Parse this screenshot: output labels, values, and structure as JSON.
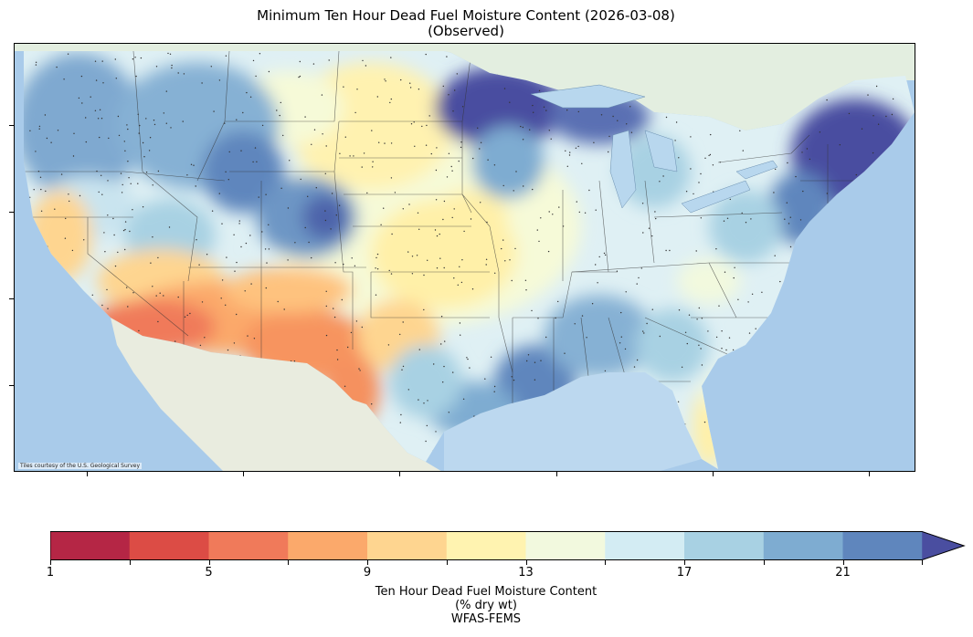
{
  "title": "Minimum Ten Hour Dead Fuel Moisture Content (2026-03-08)",
  "subtitle": "(Observed)",
  "attribution": "Tiles courtesy of the U.S. Geological Survey",
  "colorbar": {
    "ticks": [
      "1",
      "5",
      "9",
      "13",
      "17",
      "21"
    ],
    "label_line1": "Ten Hour Dead Fuel Moisture Content",
    "label_line2": "(% dry wt)",
    "label_line3": "WFAS-FEMS",
    "colors": [
      "#b52645",
      "#dc4c45",
      "#f07a5a",
      "#fba96b",
      "#fed590",
      "#fff3b0",
      "#f2f9de",
      "#d3ecf3",
      "#a8d1e3",
      "#7eacd1",
      "#5f86bd",
      "#4a4ea0"
    ],
    "extend": "max"
  },
  "colors": {
    "ocean": "#a9cbea",
    "land": "#eef0e4",
    "mexico": "#e9ecdf",
    "canada": "#e3eee0",
    "great_lakes": "#b8d7ee"
  }
}
